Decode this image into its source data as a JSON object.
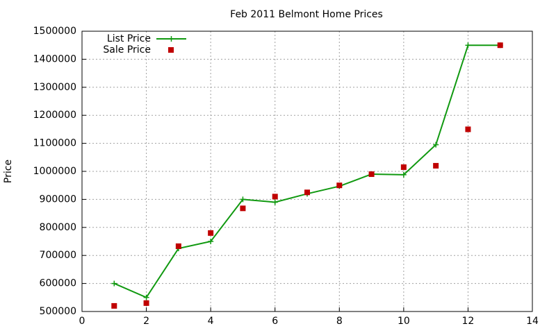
{
  "chart_data": {
    "type": "line",
    "title": "Feb 2011 Belmont Home Prices",
    "y_label": "Price",
    "x": [
      1,
      2,
      3,
      4,
      5,
      6,
      7,
      8,
      9,
      10,
      11,
      12,
      13
    ],
    "series": [
      {
        "name": "List Price",
        "color": "#109910",
        "style": "linespoints",
        "values": [
          600000,
          550000,
          725000,
          750000,
          900000,
          890000,
          920000,
          947000,
          990000,
          988000,
          1095000,
          1450000,
          1450000
        ]
      },
      {
        "name": "Sale Price",
        "color": "#c00000",
        "style": "points",
        "values": [
          520000,
          530000,
          733000,
          780000,
          868000,
          910000,
          925000,
          950000,
          990000,
          1015000,
          1020000,
          1150000,
          1450000
        ]
      }
    ],
    "xlim": [
      0,
      14
    ],
    "xticks": [
      0,
      2,
      4,
      6,
      8,
      10,
      12,
      14
    ],
    "ylim": [
      500000,
      1500000
    ],
    "yticks": [
      500000,
      600000,
      700000,
      800000,
      900000,
      1000000,
      1100000,
      1200000,
      1300000,
      1400000,
      1500000
    ],
    "grid": true,
    "legend": "top-left"
  }
}
